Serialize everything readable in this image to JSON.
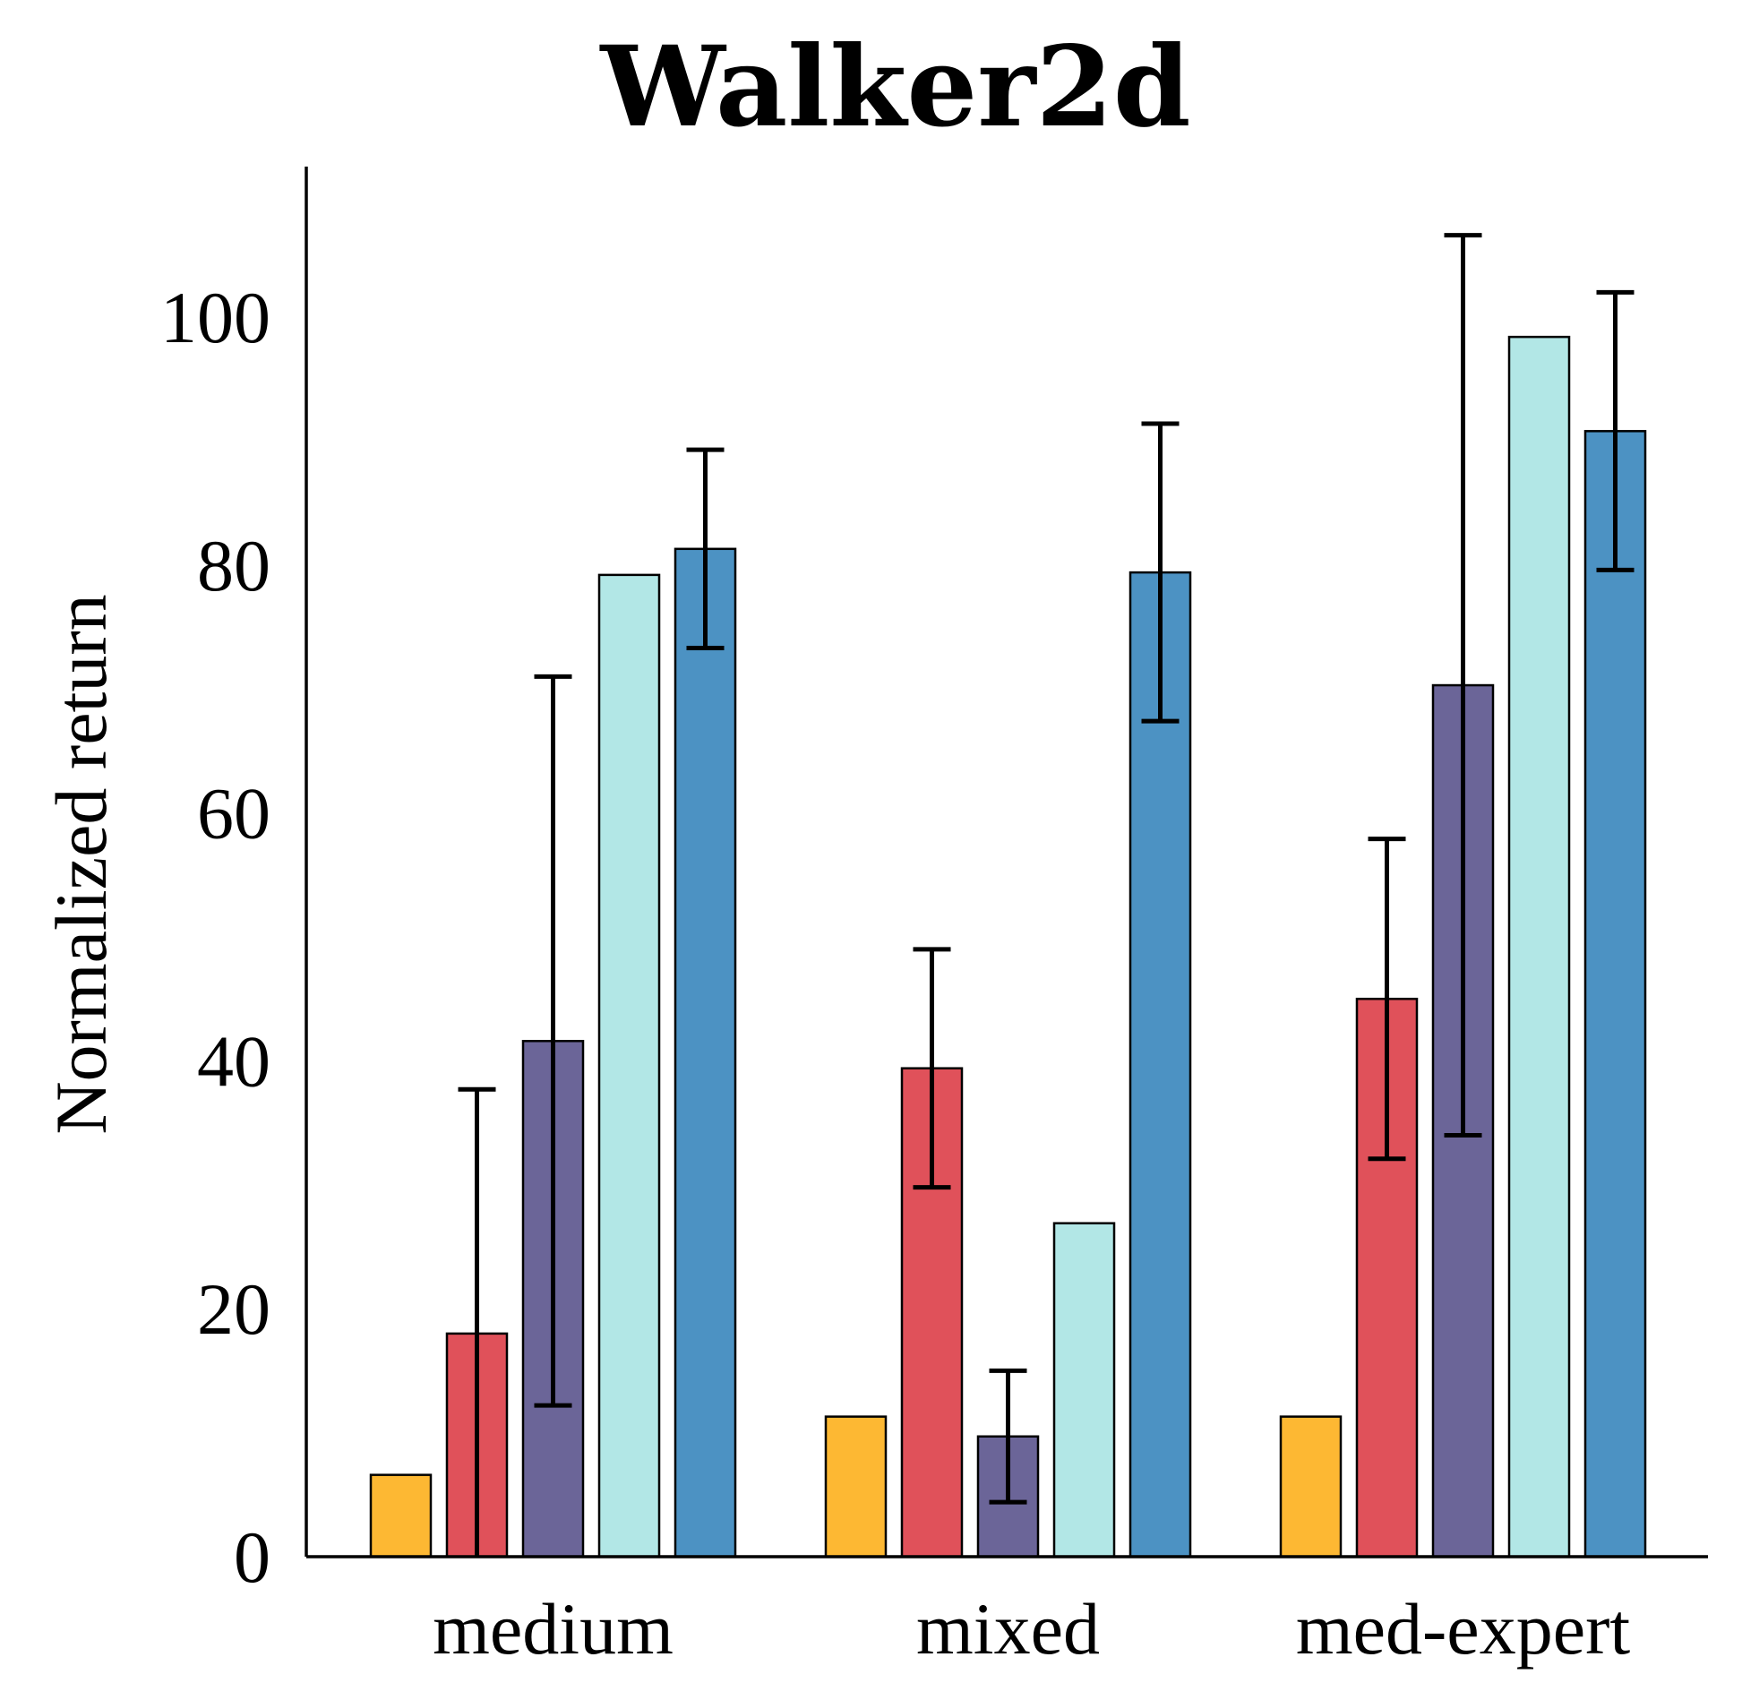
{
  "chart_data": {
    "type": "bar",
    "title": "Walker2d",
    "ylabel": "Normalized return",
    "xlabel": "",
    "ylim": [
      0,
      112
    ],
    "yticks": [
      0,
      20,
      40,
      60,
      80,
      100
    ],
    "categories": [
      "medium",
      "mixed",
      "med-expert"
    ],
    "grid": false,
    "legend": "none",
    "series": [
      {
        "color": "#fdb833",
        "values": [
          6.6,
          11.3,
          11.3
        ],
        "err": [
          null,
          null,
          null
        ]
      },
      {
        "color": "#e0515a",
        "values": [
          18,
          39.4,
          45
        ],
        "err": [
          19.7,
          9.6,
          12.9
        ]
      },
      {
        "color": "#6b6598",
        "values": [
          41.6,
          9.7,
          70.3
        ],
        "err": [
          29.4,
          5.3,
          36.3
        ]
      },
      {
        "color": "#b2e7e6",
        "values": [
          79.2,
          26.9,
          98.4
        ],
        "err": [
          null,
          null,
          null
        ]
      },
      {
        "color": "#4c92c3",
        "values": [
          81.3,
          79.4,
          90.8
        ],
        "err": [
          8,
          12,
          11.2
        ]
      }
    ]
  }
}
